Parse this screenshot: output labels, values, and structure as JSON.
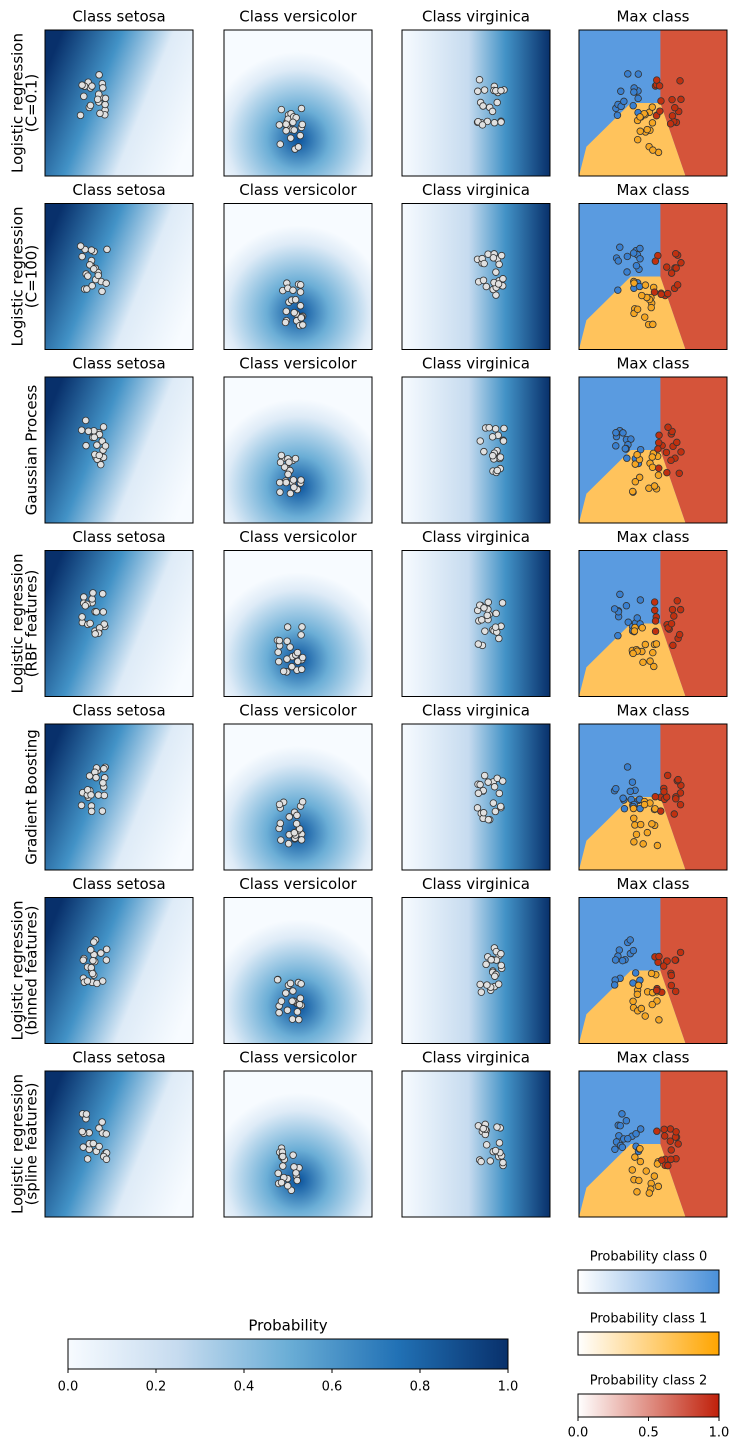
{
  "chart_data": [
    {
      "type": "heatmap",
      "columns": [
        "Class setosa",
        "Class versicolor",
        "Class virginica",
        "Max class"
      ],
      "rows": [
        [
          "Logistic regression",
          "(C=0.1)"
        ],
        [
          "Logistic regression",
          "(C=100)"
        ],
        [
          "Gaussian Process"
        ],
        [
          "Logistic regression",
          "(RBF features)"
        ],
        [
          "Gradient Boosting"
        ],
        [
          "Logistic regression",
          "(binned features)"
        ],
        [
          "Logistic regression",
          "(spline features)"
        ]
      ]
    },
    {
      "type": "colorbar",
      "title": "Probability",
      "xlim": [
        0,
        1
      ],
      "xticks": [
        {
          "value": 0,
          "label": "0.0"
        },
        {
          "value": 0.2,
          "label": "0.2"
        },
        {
          "value": 0.4,
          "label": "0.4"
        },
        {
          "value": 0.6,
          "label": "0.6"
        },
        {
          "value": 0.8,
          "label": "0.8"
        },
        {
          "value": 1,
          "label": "1.0"
        }
      ]
    },
    {
      "type": "classbars",
      "titles": [
        "Probability class 0",
        "Probability class 1",
        "Probability class 2"
      ],
      "colors": [
        "#4a90d9",
        "#ffa500",
        "#c0200a"
      ],
      "xlim": [
        0,
        1
      ],
      "xticks": [
        {
          "value": 0,
          "label": "0.0"
        },
        {
          "value": 0.5,
          "label": "0.5"
        },
        {
          "value": 1,
          "label": "1.0"
        }
      ]
    }
  ]
}
